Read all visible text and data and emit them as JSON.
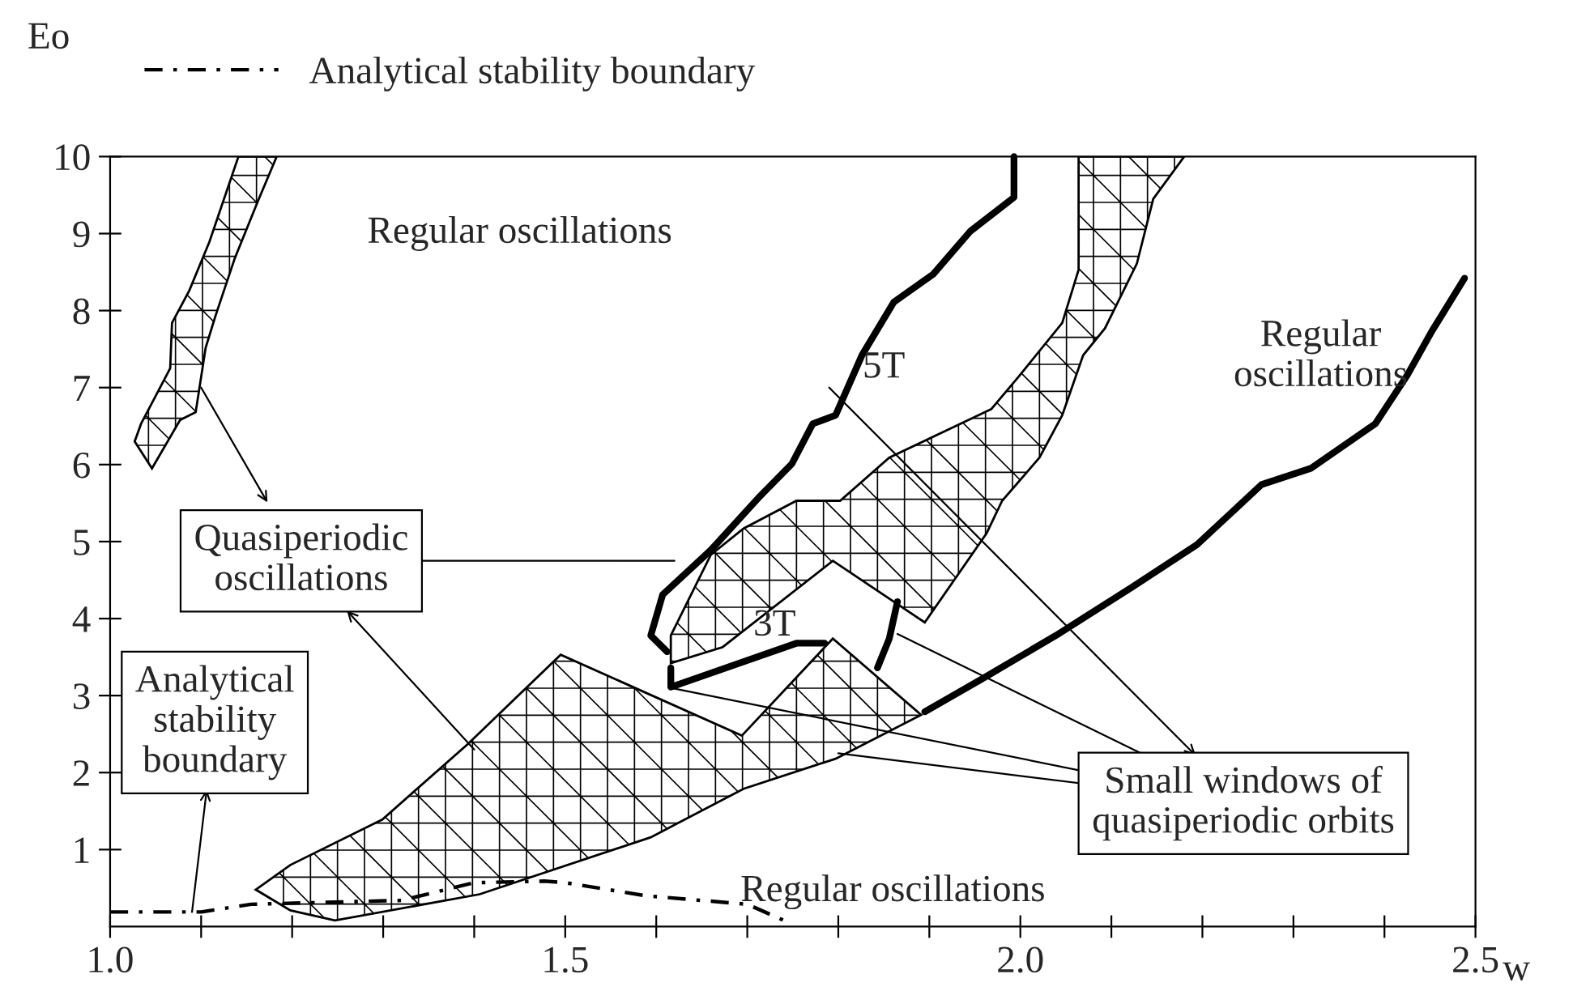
{
  "chart_data": {
    "type": "line",
    "xlabel": "w",
    "ylabel": "Eo",
    "xlim": [
      1.0,
      2.5
    ],
    "ylim": [
      0,
      10
    ],
    "xticks": [
      {
        "value": 1.0,
        "label": "1.0"
      },
      {
        "value": 1.1,
        "label": null
      },
      {
        "value": 1.2,
        "label": null
      },
      {
        "value": 1.3,
        "label": null
      },
      {
        "value": 1.4,
        "label": null
      },
      {
        "value": 1.5,
        "label": "1.5"
      },
      {
        "value": 1.6,
        "label": null
      },
      {
        "value": 1.7,
        "label": null
      },
      {
        "value": 1.8,
        "label": null
      },
      {
        "value": 1.9,
        "label": null
      },
      {
        "value": 2.0,
        "label": "2.0"
      },
      {
        "value": 2.1,
        "label": null
      },
      {
        "value": 2.2,
        "label": null
      },
      {
        "value": 2.3,
        "label": null
      },
      {
        "value": 2.4,
        "label": null
      },
      {
        "value": 2.5,
        "label": "2.5"
      }
    ],
    "yticks": [
      1,
      2,
      3,
      4,
      5,
      6,
      7,
      8,
      9,
      10
    ],
    "grid": false,
    "legend": "top left",
    "marker": "none",
    "series": [
      {
        "name": "Analytical stability boundary",
        "type": "line",
        "line_style": "dashed",
        "color": "#000000",
        "x": [
          1.0,
          1.1,
          1.155,
          1.32,
          1.4,
          1.477,
          1.5,
          1.589,
          1.7,
          1.744
        ],
        "values": [
          0.19,
          0.19,
          0.29,
          0.34,
          0.57,
          0.59,
          0.57,
          0.4,
          0.29,
          0.06
        ]
      },
      {
        "type": "area",
        "color": "#000000",
        "x": [
          1.16,
          1.198,
          1.299,
          1.393,
          1.495,
          1.694,
          1.794,
          1.891,
          1.797,
          1.696,
          1.594,
          1.406,
          1.247,
          1.198
        ],
        "values": [
          0.48,
          0.8,
          1.39,
          2.37,
          3.53,
          2.48,
          3.74,
          2.75,
          2.18,
          1.79,
          1.16,
          0.42,
          0.08,
          0.21
        ]
      },
      {
        "type": "area",
        "color": "#000000",
        "x": [
          1.027,
          1.034,
          1.066,
          1.068,
          1.087,
          1.109,
          1.141,
          1.183,
          1.162,
          1.137,
          1.116,
          1.105,
          1.094,
          1.077,
          1.046
        ],
        "values": [
          6.3,
          6.53,
          7.25,
          7.84,
          8.26,
          8.89,
          10.0,
          10.0,
          9.41,
          8.68,
          7.94,
          7.52,
          6.68,
          6.58,
          5.95
        ]
      },
      {
        "type": "area",
        "color": "#000000",
        "x": [
          1.616,
          1.616,
          1.66,
          1.696,
          1.754,
          1.802,
          1.856,
          1.968,
          1.998,
          2.046,
          2.064,
          2.064,
          2.18,
          2.146,
          2.128,
          2.093,
          2.069,
          2.046,
          2.021,
          1.98,
          1.963,
          1.895,
          1.794,
          1.673
        ],
        "values": [
          3.42,
          3.78,
          4.83,
          5.17,
          5.53,
          5.53,
          6.09,
          6.72,
          7.14,
          7.84,
          8.53,
          10.0,
          10.0,
          9.45,
          8.61,
          7.77,
          7.42,
          6.64,
          6.09,
          5.53,
          5.11,
          3.95,
          4.75,
          3.63
        ]
      },
      {
        "type": "line",
        "color": "#000000",
        "x": [
          1.993,
          1.993,
          1.945,
          1.904,
          1.861,
          1.826,
          1.797,
          1.772,
          1.749,
          1.714,
          1.66,
          1.607,
          1.594,
          1.612
        ],
        "values": [
          10.0,
          9.47,
          9.03,
          8.47,
          8.11,
          7.42,
          6.64,
          6.53,
          6.01,
          5.59,
          4.89,
          4.31,
          3.78,
          3.57
        ]
      },
      {
        "type": "line",
        "color": "#000000",
        "x": [
          1.616,
          1.616,
          1.754,
          1.785,
          null,
          1.865,
          1.856,
          1.843
        ],
        "values": [
          3.36,
          3.11,
          3.68,
          3.68,
          null,
          4.22,
          3.74,
          3.36
        ]
      },
      {
        "type": "line",
        "color": "#000000",
        "x": [
          1.895,
          1.957,
          2.039,
          2.123,
          2.194,
          2.265,
          2.319,
          2.39,
          2.425,
          2.452,
          2.488
        ],
        "values": [
          2.79,
          3.21,
          3.78,
          4.41,
          4.96,
          5.74,
          5.95,
          6.53,
          7.16,
          7.73,
          8.42
        ]
      }
    ],
    "annotations": [
      "Regular oscillations",
      "Regular\noscillations",
      "Regular oscillations",
      "5T",
      "3T",
      {
        "text": "Quasiperiodic\noscillations",
        "x": 1.1,
        "y": 7.0
      },
      {
        "text": "Small windows of\nquasiperiodic orbits",
        "x": 1.616,
        "y": 3.1
      },
      {
        "text": "Analytical\nstability\nboundary",
        "x": 1.09,
        "y": 0.19
      }
    ]
  }
}
